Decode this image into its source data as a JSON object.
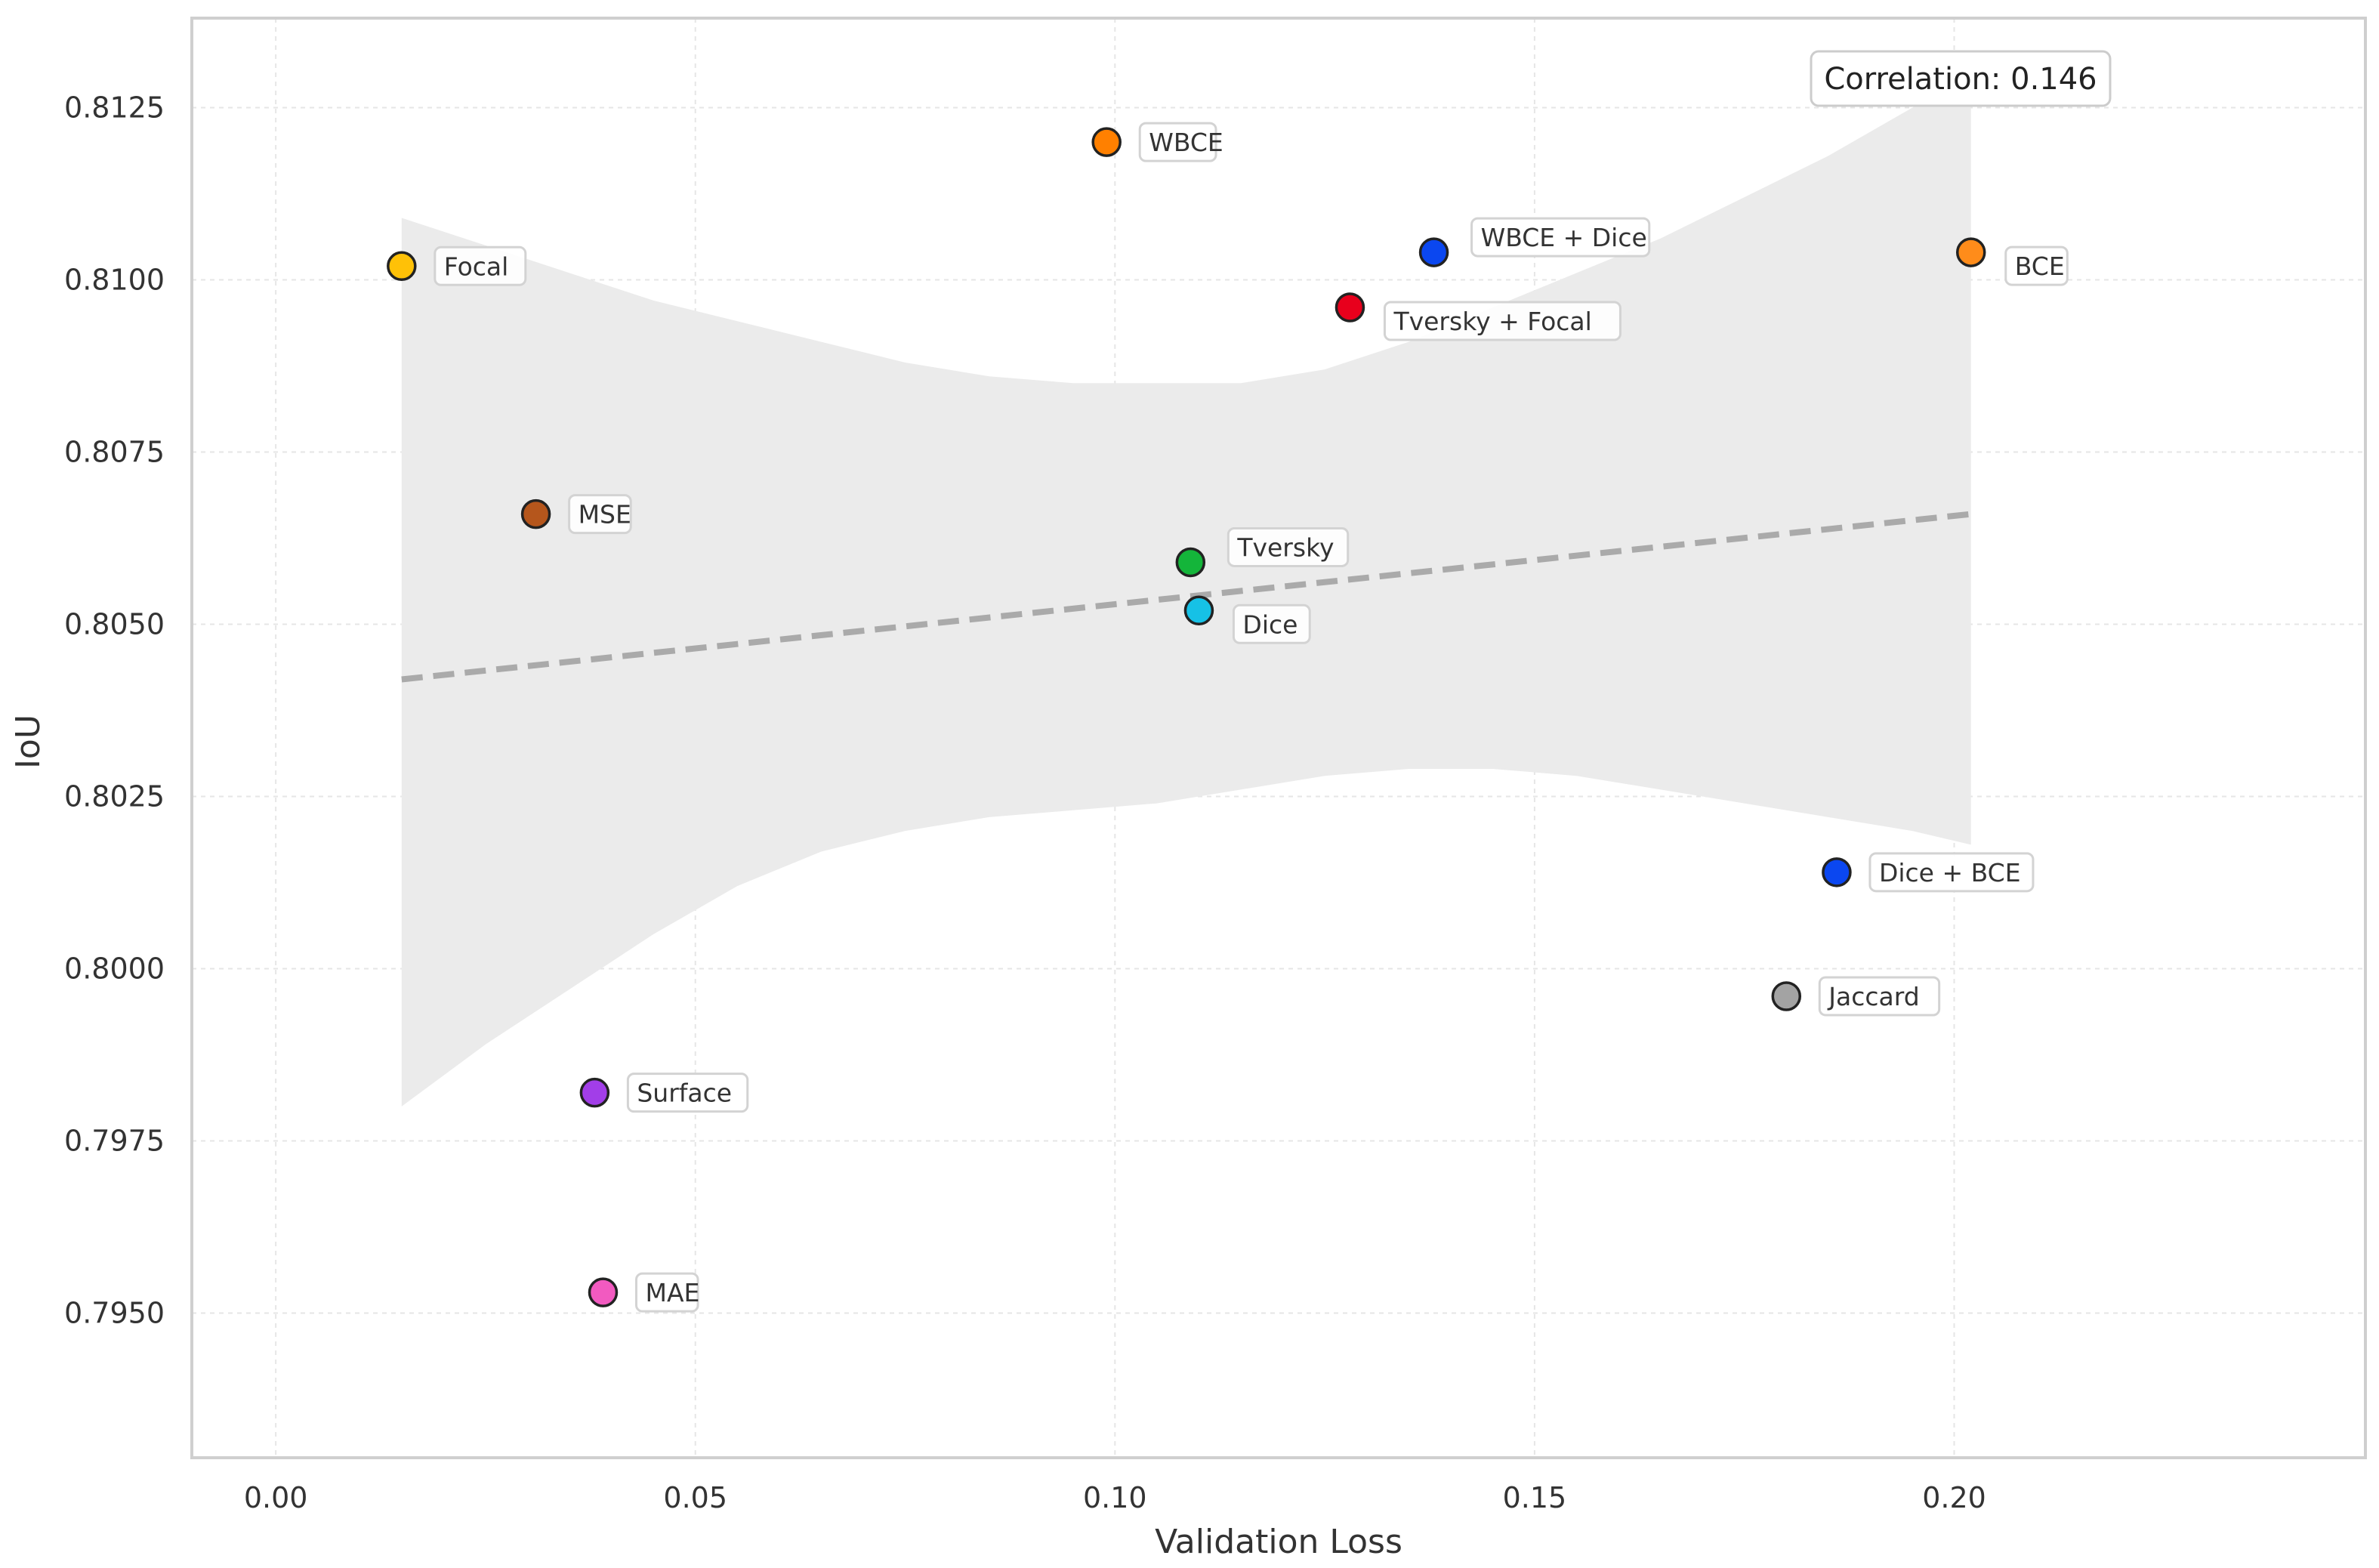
{
  "chart_data": {
    "type": "scatter",
    "title": "",
    "xlabel": "Validation Loss",
    "ylabel": "IoU",
    "xlim": [
      -0.01,
      0.249
    ],
    "ylim": [
      0.7929,
      0.8138
    ],
    "xticks": [
      0.0,
      0.05,
      0.1,
      0.15,
      0.2
    ],
    "xtick_labels": [
      "0.00",
      "0.05",
      "0.10",
      "0.15",
      "0.20"
    ],
    "yticks": [
      0.795,
      0.7975,
      0.8,
      0.8025,
      0.805,
      0.8075,
      0.81,
      0.8125
    ],
    "ytick_labels": [
      "0.7950",
      "0.7975",
      "0.8000",
      "0.8025",
      "0.8050",
      "0.8075",
      "0.8100",
      "0.8125"
    ],
    "grid": true,
    "correlation_label": "Correlation: 0.146",
    "trend_line": {
      "style": "dashed",
      "color": "#aaaaaa",
      "x": [
        0.015,
        0.202
      ],
      "y": [
        0.8042,
        0.8066
      ]
    },
    "confidence_band": {
      "color": "#ebebeb",
      "x": [
        0.015,
        0.025,
        0.035,
        0.045,
        0.055,
        0.065,
        0.075,
        0.085,
        0.095,
        0.105,
        0.115,
        0.125,
        0.135,
        0.145,
        0.155,
        0.165,
        0.175,
        0.185,
        0.195,
        0.202
      ],
      "upper": [
        0.8109,
        0.8105,
        0.8101,
        0.8097,
        0.8094,
        0.8091,
        0.8088,
        0.8086,
        0.8085,
        0.8085,
        0.8085,
        0.8087,
        0.8091,
        0.8096,
        0.8101,
        0.8106,
        0.8112,
        0.8118,
        0.8125,
        0.813
      ],
      "lower": [
        0.798,
        0.7989,
        0.7997,
        0.8005,
        0.8012,
        0.8017,
        0.802,
        0.8022,
        0.8023,
        0.8024,
        0.8026,
        0.8028,
        0.8029,
        0.8029,
        0.8028,
        0.8026,
        0.8024,
        0.8022,
        0.802,
        0.8018
      ]
    },
    "points": [
      {
        "name": "WBCE",
        "x": 0.099,
        "y": 0.812,
        "color": "#ff8000",
        "label_pos": "right"
      },
      {
        "name": "Focal",
        "x": 0.015,
        "y": 0.8102,
        "color": "#ffc107",
        "label_pos": "right"
      },
      {
        "name": "WBCE + Dice",
        "x": 0.138,
        "y": 0.8104,
        "color": "#0b47f0",
        "label_pos": "upper-right"
      },
      {
        "name": "BCE",
        "x": 0.202,
        "y": 0.8104,
        "color": "#ff8c1a",
        "label_pos": "lower-right"
      },
      {
        "name": "Tversky + Focal",
        "x": 0.128,
        "y": 0.8096,
        "color": "#e8001c",
        "label_pos": "lower-right"
      },
      {
        "name": "MSE",
        "x": 0.031,
        "y": 0.8066,
        "color": "#b5561c",
        "label_pos": "right"
      },
      {
        "name": "Tversky",
        "x": 0.109,
        "y": 0.8059,
        "color": "#14b53a",
        "label_pos": "upper-right"
      },
      {
        "name": "Dice",
        "x": 0.11,
        "y": 0.8052,
        "color": "#16c1e6",
        "label_pos": "lower-right"
      },
      {
        "name": "Dice + BCE",
        "x": 0.186,
        "y": 0.8014,
        "color": "#0b47f0",
        "label_pos": "right"
      },
      {
        "name": "Jaccard",
        "x": 0.18,
        "y": 0.7996,
        "color": "#a3a3a3",
        "label_pos": "right"
      },
      {
        "name": "Surface",
        "x": 0.038,
        "y": 0.7982,
        "color": "#a23ee8",
        "label_pos": "right"
      },
      {
        "name": "MAE",
        "x": 0.039,
        "y": 0.7953,
        "color": "#f25ac0",
        "label_pos": "right"
      }
    ]
  }
}
